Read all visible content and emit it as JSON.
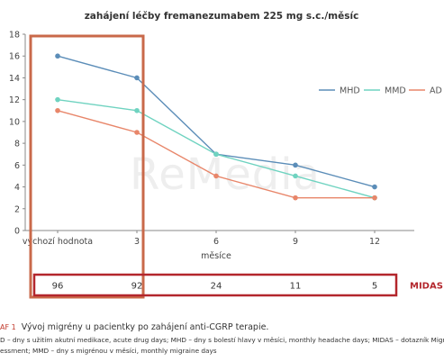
{
  "chart_data": {
    "type": "line",
    "title": "zahájení léčby fremanezumabem 225 mg s.c./měsíc",
    "xlabel": "měsíce",
    "ylabel": "",
    "categories": [
      "výchozí hodnota",
      "3",
      "6",
      "9",
      "12"
    ],
    "ylim": [
      0,
      18
    ],
    "yticks": [
      0,
      2,
      4,
      6,
      8,
      10,
      12,
      14,
      16,
      18
    ],
    "grid": false,
    "legend": "top-right",
    "series": [
      {
        "name": "MHD",
        "color": "#5b8db8",
        "values": [
          16,
          14,
          7,
          6,
          4
        ]
      },
      {
        "name": "MMD",
        "color": "#6fd3c0",
        "values": [
          12,
          11,
          7,
          5,
          3
        ]
      },
      {
        "name": "AD",
        "color": "#e8866a",
        "values": [
          11,
          9,
          5,
          3,
          3
        ]
      }
    ],
    "midas": {
      "label": "MIDAS",
      "values": [
        "96",
        "92",
        "24",
        "11",
        "5"
      ]
    },
    "highlight_color": "#c9694a",
    "midas_box_color": "#b3262c",
    "watermark": "ReMedia"
  },
  "caption": {
    "prefix": "AF 1",
    "title": "Vývoj migrény u pacientky po zahájení anti-CGRP terapie.",
    "line1": "D – dny s užitím akutní medikace, acute drug days; MHD – dny s bolestí hlavy v měsíci, monthly headache days; MIDAS – dotazník Migraine Disabi",
    "line2": "essment; MMD – dny s migrénou v měsíci, monthly migraine days"
  }
}
